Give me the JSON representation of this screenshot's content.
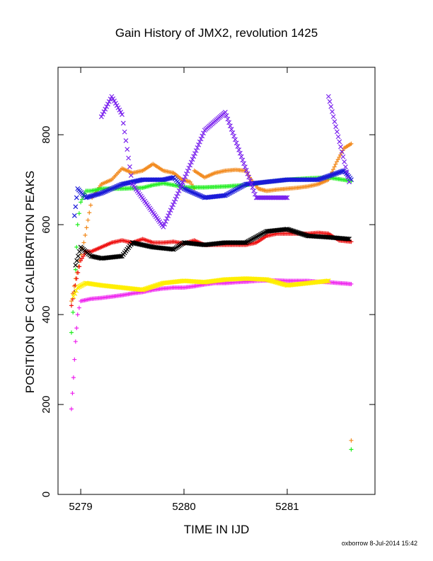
{
  "chart_data": {
    "type": "scatter",
    "title": "Gain History of JMX2, revolution 1425",
    "xlabel": "TIME IN IJD",
    "ylabel": "POSITION OF Cd CALIBRATION PEAKS",
    "xlim": [
      5278.78,
      5281.85
    ],
    "ylim": [
      0,
      950
    ],
    "xticks": [
      5279,
      5280,
      5281
    ],
    "xtick_labels": [
      "5279",
      "5280",
      "5281"
    ],
    "yticks": [
      0,
      200,
      400,
      600,
      800
    ],
    "ytick_labels": [
      "0",
      "200",
      "400",
      "600",
      "800"
    ],
    "grid": false,
    "footer": "oxborrow  8-Jul-2014 15:42",
    "series": [
      {
        "color": "#f28a1e",
        "marker": "+",
        "points": [
          [
            5278.91,
            430
          ],
          [
            5278.95,
            480
          ],
          [
            5278.99,
            520
          ],
          [
            5279.03,
            560
          ],
          [
            5279.07,
            610
          ],
          [
            5279.11,
            660
          ],
          [
            5279.2,
            690
          ],
          [
            5279.3,
            700
          ],
          [
            5279.4,
            725
          ],
          [
            5279.5,
            715
          ],
          [
            5279.6,
            720
          ],
          [
            5279.7,
            735
          ],
          [
            5279.8,
            720
          ],
          [
            5279.9,
            715
          ],
          [
            5279.98,
            700
          ],
          [
            5280.06,
            695
          ],
          [
            5280.1,
            680
          ],
          [
            5280.1,
            720
          ],
          [
            5280.2,
            705
          ],
          [
            5280.3,
            715
          ],
          [
            5280.4,
            720
          ],
          [
            5280.5,
            722
          ],
          [
            5280.6,
            720
          ],
          [
            5280.65,
            700
          ],
          [
            5280.72,
            680
          ],
          [
            5280.8,
            675
          ],
          [
            5280.9,
            678
          ],
          [
            5281.0,
            680
          ],
          [
            5281.1,
            682
          ],
          [
            5281.2,
            685
          ],
          [
            5281.3,
            690
          ],
          [
            5281.4,
            700
          ],
          [
            5281.48,
            740
          ],
          [
            5281.55,
            770
          ],
          [
            5281.62,
            780
          ],
          [
            5281.62,
            120
          ]
        ]
      },
      {
        "color": "#22ee22",
        "marker": "+",
        "points": [
          [
            5278.91,
            360
          ],
          [
            5278.94,
            450
          ],
          [
            5278.97,
            600
          ],
          [
            5279.0,
            650
          ],
          [
            5279.05,
            675
          ],
          [
            5279.1,
            675
          ],
          [
            5279.2,
            680
          ],
          [
            5279.4,
            680
          ],
          [
            5279.6,
            682
          ],
          [
            5279.7,
            688
          ],
          [
            5279.8,
            692
          ],
          [
            5279.9,
            688
          ],
          [
            5280.0,
            683
          ],
          [
            5280.2,
            683
          ],
          [
            5280.4,
            685
          ],
          [
            5280.6,
            688
          ],
          [
            5280.8,
            695
          ],
          [
            5281.0,
            700
          ],
          [
            5281.2,
            703
          ],
          [
            5281.4,
            705
          ],
          [
            5281.62,
            697
          ],
          [
            5281.62,
            100
          ]
        ]
      },
      {
        "color": "#ee1111",
        "marker": "+",
        "points": [
          [
            5278.91,
            420
          ],
          [
            5278.96,
            480
          ],
          [
            5279.0,
            520
          ],
          [
            5279.05,
            540
          ],
          [
            5279.1,
            540
          ],
          [
            5279.2,
            550
          ],
          [
            5279.3,
            560
          ],
          [
            5279.4,
            565
          ],
          [
            5279.5,
            560
          ],
          [
            5279.6,
            568
          ],
          [
            5279.7,
            560
          ],
          [
            5279.8,
            560
          ],
          [
            5279.9,
            562
          ],
          [
            5280.0,
            558
          ],
          [
            5280.1,
            565
          ],
          [
            5280.2,
            555
          ],
          [
            5280.3,
            555
          ],
          [
            5280.4,
            555
          ],
          [
            5280.5,
            555
          ],
          [
            5280.6,
            555
          ],
          [
            5280.7,
            560
          ],
          [
            5280.8,
            575
          ],
          [
            5280.9,
            580
          ],
          [
            5281.0,
            580
          ],
          [
            5281.1,
            580
          ],
          [
            5281.2,
            580
          ],
          [
            5281.3,
            582
          ],
          [
            5281.4,
            580
          ],
          [
            5281.5,
            565
          ],
          [
            5281.62,
            562
          ]
        ]
      },
      {
        "color": "#ee22ee",
        "marker": "+",
        "points": [
          [
            5278.91,
            190
          ],
          [
            5278.93,
            260
          ],
          [
            5278.95,
            340
          ],
          [
            5278.97,
            400
          ],
          [
            5279.0,
            430
          ],
          [
            5279.1,
            435
          ],
          [
            5279.2,
            437
          ],
          [
            5279.3,
            440
          ],
          [
            5279.4,
            443
          ],
          [
            5279.5,
            447
          ],
          [
            5279.6,
            450
          ],
          [
            5279.7,
            455
          ],
          [
            5279.8,
            458
          ],
          [
            5279.9,
            460
          ],
          [
            5280.0,
            460
          ],
          [
            5280.1,
            463
          ],
          [
            5280.2,
            467
          ],
          [
            5280.3,
            470
          ],
          [
            5280.4,
            470
          ],
          [
            5280.5,
            472
          ],
          [
            5280.6,
            473
          ],
          [
            5280.7,
            475
          ],
          [
            5280.8,
            476
          ],
          [
            5280.9,
            476
          ],
          [
            5281.0,
            475
          ],
          [
            5281.1,
            475
          ],
          [
            5281.2,
            475
          ],
          [
            5281.3,
            473
          ],
          [
            5281.4,
            472
          ],
          [
            5281.5,
            470
          ],
          [
            5281.62,
            468
          ]
        ]
      },
      {
        "color": "#1a1ad8",
        "marker": "x",
        "points": [
          [
            5278.94,
            620
          ],
          [
            5278.97,
            680
          ],
          [
            5279.05,
            660
          ],
          [
            5279.2,
            670
          ],
          [
            5279.4,
            690
          ],
          [
            5279.6,
            700
          ],
          [
            5279.8,
            700
          ],
          [
            5279.9,
            705
          ],
          [
            5280.0,
            680
          ],
          [
            5280.2,
            660
          ],
          [
            5280.4,
            665
          ],
          [
            5280.6,
            690
          ],
          [
            5280.8,
            695
          ],
          [
            5281.0,
            700
          ],
          [
            5281.3,
            700
          ],
          [
            5281.55,
            720
          ],
          [
            5281.62,
            700
          ]
        ]
      },
      {
        "color": "#000000",
        "marker": "x",
        "points": [
          [
            5278.95,
            510
          ],
          [
            5279.0,
            550
          ],
          [
            5279.1,
            530
          ],
          [
            5279.2,
            525
          ],
          [
            5279.4,
            530
          ],
          [
            5279.5,
            560
          ],
          [
            5279.7,
            550
          ],
          [
            5279.9,
            545
          ],
          [
            5280.0,
            560
          ],
          [
            5280.2,
            555
          ],
          [
            5280.4,
            560
          ],
          [
            5280.6,
            560
          ],
          [
            5280.8,
            585
          ],
          [
            5281.0,
            590
          ],
          [
            5281.2,
            575
          ],
          [
            5281.4,
            572
          ],
          [
            5281.6,
            568
          ]
        ]
      },
      {
        "color": "#7a22ee",
        "marker": "x",
        "points": [
          [
            5279.2,
            840
          ],
          [
            5279.3,
            885
          ],
          [
            5279.4,
            845
          ],
          [
            5279.5,
            690
          ],
          [
            5279.8,
            595
          ],
          [
            5280.0,
            700
          ],
          [
            5280.2,
            810
          ],
          [
            5280.4,
            850
          ],
          [
            5280.7,
            660
          ],
          [
            5280.9,
            660
          ],
          [
            5281.0,
            660
          ],
          [
            5281.4,
            885
          ],
          [
            5281.6,
            695
          ]
        ]
      },
      {
        "color": "#ffee00",
        "marker": "x",
        "points": [
          [
            5278.93,
            440
          ],
          [
            5278.97,
            460
          ],
          [
            5279.05,
            470
          ],
          [
            5279.2,
            465
          ],
          [
            5279.4,
            460
          ],
          [
            5279.6,
            455
          ],
          [
            5279.8,
            470
          ],
          [
            5280.0,
            475
          ],
          [
            5280.2,
            472
          ],
          [
            5280.4,
            478
          ],
          [
            5280.6,
            480
          ],
          [
            5280.8,
            478
          ],
          [
            5281.0,
            465
          ],
          [
            5281.2,
            470
          ],
          [
            5281.4,
            475
          ]
        ]
      }
    ]
  }
}
